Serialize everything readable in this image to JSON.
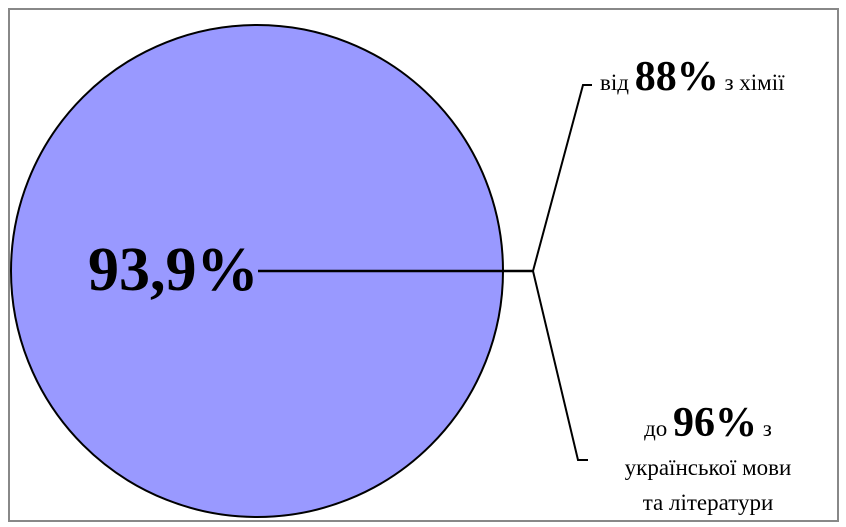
{
  "center_label": "93,9%",
  "top_note": {
    "prefix": "від",
    "value": "88%",
    "suffix": "з хімії"
  },
  "bottom_note": {
    "prefix": "до",
    "value": "96%",
    "suffix": "з",
    "line2": "української мови",
    "line3": "та літератури"
  }
}
